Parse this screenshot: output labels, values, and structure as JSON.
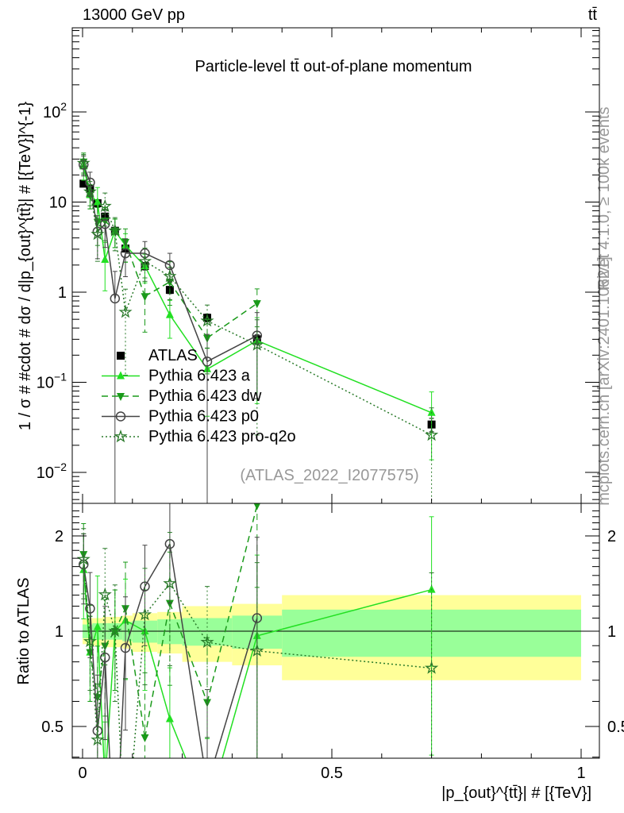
{
  "header": {
    "left": "13000 GeV pp",
    "right": "tt̄"
  },
  "side": {
    "rivet": "Rivet 4.1.0, ≥ 100k events",
    "mcplots": "mcplots.cern.ch [arXiv:2401.10621]"
  },
  "chart_data": {
    "type": "line",
    "title": "Particle-level tt̄ out-of-plane momentum",
    "analysis": "(ATLAS_2022_I2077575)",
    "xlabel": "|p_{out}^{tt̄}| # [{TeV}]",
    "ylabel": "1 / σ # #cdot # dσ / d|p_{out}^{tt̄}| # [{TeV}]^{-1}",
    "ratio_ylabel": "Ratio to ATLAS",
    "xlim": [
      -0.02,
      1.04
    ],
    "ylim": [
      0.0046,
      850
    ],
    "yscale": "log",
    "ratio_ylim": [
      0.4,
      2.5
    ],
    "xticks": [
      "0",
      "0.5",
      "1"
    ],
    "xtick_values": [
      0,
      0.5,
      1
    ],
    "yticks": [
      "10^{-2}",
      "10^{-1}",
      "1",
      "10",
      "10^{2}"
    ],
    "ytick_values": [
      0.01,
      0.1,
      1,
      10,
      100
    ],
    "ratio_ticks": [
      "0.5",
      "1",
      "2"
    ],
    "ratio_tick_values": [
      0.5,
      1,
      2
    ],
    "x": [
      0.002,
      0.015,
      0.03,
      0.045,
      0.065,
      0.086,
      0.125,
      0.175,
      0.25,
      0.35,
      0.7
    ],
    "band_edges": [
      0,
      0.01,
      0.02,
      0.04,
      0.05,
      0.08,
      0.1,
      0.15,
      0.2,
      0.3,
      0.4,
      1.0
    ],
    "band_stat": [
      0.05,
      0.05,
      0.06,
      0.06,
      0.06,
      0.07,
      0.08,
      0.09,
      0.1,
      0.12,
      0.17
    ],
    "band_total": [
      0.09,
      0.1,
      0.1,
      0.11,
      0.11,
      0.12,
      0.14,
      0.15,
      0.2,
      0.22,
      0.3
    ],
    "legend_placement": "center-left",
    "series": [
      {
        "name": "ATLAS",
        "style": "data",
        "color": "#000000",
        "values": [
          16,
          14,
          9.7,
          6.9,
          4.8,
          3.05,
          1.95,
          1.06,
          0.52,
          0.3,
          0.034
        ],
        "rel_err": [
          0.05,
          0.05,
          0.06,
          0.06,
          0.06,
          0.07,
          0.08,
          0.09,
          0.1,
          0.12,
          0.17
        ]
      },
      {
        "name": "Pythia 6.423 a",
        "style": "solid",
        "marker": "triangle-up",
        "color": "#22e022",
        "values": [
          25,
          12,
          10,
          2.3,
          4.8,
          3.3,
          1.95,
          0.56,
          0.14,
          0.29,
          0.046
        ],
        "rel_err": [
          0.3,
          0.3,
          0.45,
          0.55,
          0.35,
          0.35,
          0.35,
          0.45,
          0.7,
          0.8,
          0.7
        ]
      },
      {
        "name": "Pythia 6.423 dw",
        "style": "dashed",
        "marker": "triangle-down",
        "color": "#1a9a1a",
        "values": [
          28,
          12,
          6,
          6.2,
          4.8,
          3.6,
          0.9,
          1.3,
          0.31,
          0.75,
          null
        ],
        "rel_err": [
          0.25,
          0.3,
          0.45,
          0.4,
          0.35,
          0.4,
          0.6,
          0.45,
          0.6,
          0.45,
          null
        ]
      },
      {
        "name": "Pythia 6.423 p0",
        "style": "solid",
        "marker": "circle-open",
        "color": "#444444",
        "values": [
          26,
          16.5,
          4.7,
          5.7,
          0.85,
          2.7,
          2.7,
          2.0,
          0.17,
          0.33,
          null
        ],
        "rel_err": [
          0.25,
          0.3,
          0.5,
          0.45,
          1.0,
          0.45,
          0.35,
          0.35,
          1.0,
          0.8,
          null
        ]
      },
      {
        "name": "Pythia 6.423 pro-q2o",
        "style": "dotted",
        "marker": "star",
        "color": "#2a7a2a",
        "values": [
          27,
          13,
          4.4,
          9,
          4.8,
          0.6,
          2.2,
          1.5,
          0.48,
          0.26,
          0.026
        ],
        "rel_err": [
          0.25,
          0.3,
          0.5,
          0.4,
          0.4,
          0.8,
          0.4,
          0.45,
          0.5,
          0.9,
          1.0
        ]
      }
    ]
  }
}
